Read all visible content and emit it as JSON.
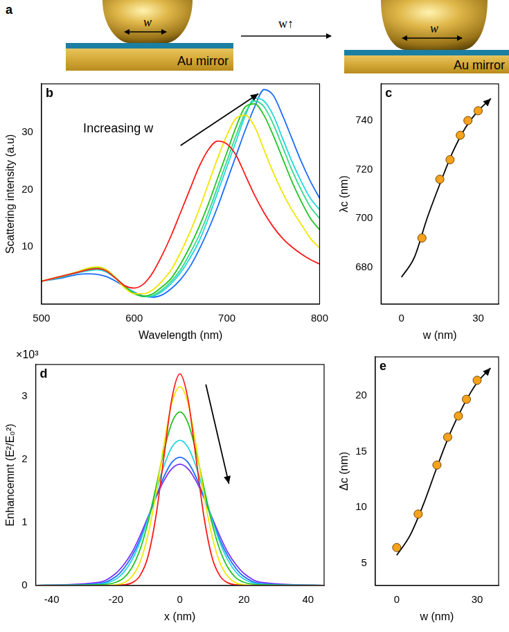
{
  "diagram": {
    "panel": "a",
    "arrow_label": "w↑",
    "before": {
      "width_label": "w",
      "mirror_label": "Au mirror"
    },
    "after": {
      "width_label": "w",
      "mirror_label": "Au mirror"
    }
  },
  "chart_data": [
    {
      "panel": "b",
      "type": "line",
      "x_label": "Wavelength (nm)",
      "y_label": "Scattering intensity (a.u)",
      "annotation": "Increasing w",
      "x": [
        500,
        520,
        540,
        550,
        560,
        570,
        580,
        590,
        600,
        610,
        620,
        630,
        640,
        650,
        660,
        670,
        680,
        690,
        700,
        710,
        720,
        730,
        740,
        750,
        760,
        770,
        780,
        790,
        800
      ],
      "series": [
        {
          "color": "#ff1a1a",
          "values": [
            4,
            4.8,
            5.6,
            6,
            6.2,
            5.8,
            4.5,
            3.2,
            2.8,
            3.5,
            5.5,
            8.5,
            12,
            16,
            20,
            24,
            27,
            28.5,
            28,
            26,
            22.5,
            19,
            16,
            13.5,
            11.5,
            10,
            8.8,
            7.8,
            7
          ]
        },
        {
          "color": "#f2e600",
          "values": [
            4,
            4.8,
            5.7,
            6.3,
            6.5,
            6,
            4.5,
            2.8,
            1.8,
            1.8,
            2.5,
            4,
            6,
            9,
            12.5,
            16.5,
            21,
            25.5,
            29.5,
            32.5,
            33,
            31,
            27,
            23,
            19.5,
            16.5,
            14,
            11.5,
            9.8
          ]
        },
        {
          "color": "#22c422",
          "values": [
            4,
            4.8,
            5.7,
            6.2,
            6.4,
            6,
            4.6,
            3,
            1.8,
            1.4,
            1.8,
            3,
            4.5,
            7,
            10,
            13.5,
            17.5,
            22,
            26.5,
            31,
            34.5,
            35,
            33,
            29.5,
            25.5,
            21.5,
            18,
            15,
            13
          ]
        },
        {
          "color": "#33d98c",
          "values": [
            4,
            4.7,
            5.6,
            6,
            6.2,
            5.8,
            4.6,
            3.1,
            1.9,
            1.3,
            1.5,
            2.5,
            4,
            6,
            8.8,
            12,
            16,
            20.5,
            25,
            29.5,
            33.5,
            35.5,
            34.5,
            31.5,
            27.5,
            23.5,
            20,
            17,
            15
          ]
        },
        {
          "color": "#22d6e0",
          "values": [
            4,
            4.7,
            5.5,
            5.8,
            6,
            5.6,
            4.5,
            3.1,
            2,
            1.3,
            1.4,
            2.2,
            3.6,
            5.5,
            8,
            11,
            15,
            19.5,
            24,
            28.5,
            33,
            36,
            35.5,
            33,
            29,
            25,
            21.5,
            18.5,
            16.5
          ]
        },
        {
          "color": "#1a6cff",
          "values": [
            4,
            4.5,
            5.2,
            5.3,
            5.2,
            4.8,
            4,
            3,
            2.1,
            1.4,
            1.2,
            1.6,
            2.7,
            4.3,
            6.5,
            9.5,
            13,
            17,
            21.5,
            26,
            30.5,
            34.5,
            37.5,
            36.5,
            33,
            29,
            25,
            21.5,
            18.5
          ]
        }
      ],
      "xlim": [
        500,
        800
      ],
      "xticks": [
        500,
        600,
        700,
        800
      ],
      "ylim": [
        0,
        38.5
      ],
      "yticks": [
        10,
        20,
        30
      ],
      "grid": false
    },
    {
      "panel": "c",
      "type": "scatter",
      "x_label": "w (nm)",
      "y_label": "λc (nm)",
      "series": [
        {
          "type": "line",
          "color": "#000000",
          "marker": "arrow",
          "x": [
            0,
            5,
            10,
            15,
            20,
            25,
            30,
            35
          ],
          "values": [
            676,
            684,
            700,
            714,
            727,
            737,
            744,
            749
          ]
        },
        {
          "type": "scatter",
          "color": "#f7a21b",
          "marker": "circle",
          "x": [
            8,
            15,
            19,
            23,
            26,
            30
          ],
          "values": [
            692,
            716,
            724,
            734,
            740,
            744
          ]
        }
      ],
      "xlim": [
        -8,
        38
      ],
      "xticks": [
        0,
        30
      ],
      "ylim": [
        665,
        755
      ],
      "yticks": [
        680,
        700,
        720,
        740
      ],
      "grid": false
    },
    {
      "panel": "d",
      "type": "line",
      "x_label": "x (nm)",
      "y_label": "Enhancemnt (E²/E₀²)",
      "y_multiplier": "×10³",
      "x": [
        -45,
        -25,
        -20,
        -17.5,
        -15,
        -12.5,
        -10,
        -7.5,
        -5,
        -2.5,
        0,
        2.5,
        5,
        7.5,
        10,
        12.5,
        15,
        17.5,
        20,
        25,
        45
      ],
      "series": [
        {
          "color": "#ff1a1a",
          "values": [
            0,
            0,
            0,
            0.01,
            0.04,
            0.15,
            0.45,
            1.09,
            2.03,
            2.96,
            3.35,
            2.96,
            2.03,
            1.09,
            0.45,
            0.15,
            0.04,
            0.01,
            0,
            0,
            0
          ]
        },
        {
          "color": "#f2e600",
          "values": [
            0,
            0,
            0.01,
            0.04,
            0.14,
            0.36,
            0.79,
            1.44,
            2.23,
            2.89,
            3.15,
            2.89,
            2.23,
            1.44,
            0.79,
            0.36,
            0.14,
            0.04,
            0.01,
            0,
            0
          ]
        },
        {
          "color": "#22c422",
          "values": [
            0,
            0.01,
            0.05,
            0.12,
            0.28,
            0.56,
            0.99,
            1.55,
            2.13,
            2.58,
            2.75,
            2.58,
            2.13,
            1.55,
            0.99,
            0.56,
            0.28,
            0.12,
            0.05,
            0.01,
            0
          ]
        },
        {
          "color": "#22d6e0",
          "values": [
            0,
            0.02,
            0.1,
            0.21,
            0.4,
            0.68,
            1.05,
            1.48,
            1.89,
            2.19,
            2.3,
            2.19,
            1.89,
            1.48,
            1.05,
            0.68,
            0.4,
            0.21,
            0.1,
            0.02,
            0
          ]
        },
        {
          "color": "#1a6cff",
          "values": [
            0,
            0.03,
            0.14,
            0.27,
            0.46,
            0.72,
            1.05,
            1.4,
            1.72,
            1.95,
            2.03,
            1.95,
            1.72,
            1.4,
            1.05,
            0.72,
            0.46,
            0.27,
            0.14,
            0.03,
            0
          ]
        },
        {
          "color": "#7a33ff",
          "values": [
            0,
            0.05,
            0.19,
            0.33,
            0.52,
            0.78,
            1.08,
            1.39,
            1.66,
            1.85,
            1.92,
            1.85,
            1.66,
            1.39,
            1.08,
            0.78,
            0.52,
            0.33,
            0.19,
            0.05,
            0
          ]
        }
      ],
      "xlim": [
        -45,
        45
      ],
      "xticks": [
        -40,
        -20,
        0,
        20,
        40
      ],
      "ylim": [
        0,
        3.5
      ],
      "yticks": [
        0,
        1,
        2,
        3
      ],
      "grid": false
    },
    {
      "panel": "e",
      "type": "scatter",
      "x_label": "w (nm)",
      "y_label": "Δc (nm)",
      "series": [
        {
          "type": "line",
          "color": "#000000",
          "marker": "arrow",
          "x": [
            0,
            5,
            10,
            15,
            20,
            25,
            30,
            35
          ],
          "values": [
            5.7,
            7.5,
            10.3,
            13.6,
            16.7,
            19.2,
            21.2,
            22.5
          ]
        },
        {
          "type": "scatter",
          "color": "#f7a21b",
          "marker": "circle",
          "x": [
            0,
            8,
            15,
            19,
            23,
            26,
            30
          ],
          "values": [
            6.4,
            9.4,
            13.8,
            16.3,
            18.2,
            19.7,
            21.4
          ]
        }
      ],
      "xlim": [
        -8,
        38
      ],
      "xticks": [
        0,
        30
      ],
      "ylim": [
        3,
        23.5
      ],
      "yticks": [
        5,
        10,
        15,
        20
      ],
      "grid": false
    }
  ]
}
